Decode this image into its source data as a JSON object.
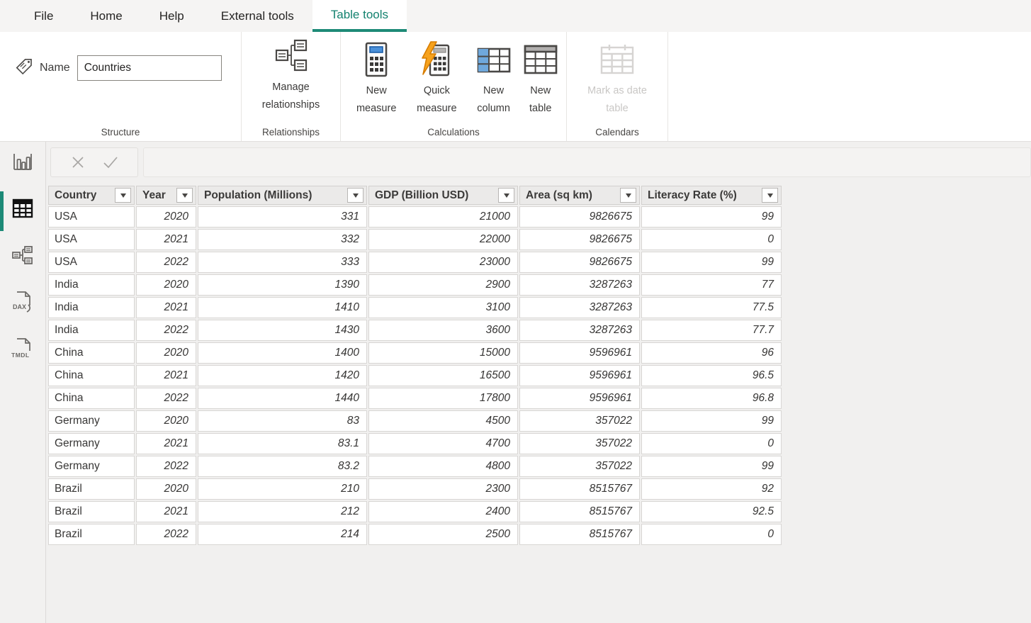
{
  "menu": {
    "items": [
      "File",
      "Home",
      "Help",
      "External tools"
    ],
    "active_tab": "Table tools"
  },
  "ribbon": {
    "structure": {
      "name_label": "Name",
      "name_value": "Countries",
      "group_label": "Structure"
    },
    "relationships": {
      "button_label": "Manage relationships",
      "group_label": "Relationships"
    },
    "calculations": {
      "buttons": [
        "New measure",
        "Quick measure",
        "New column",
        "New table"
      ],
      "group_label": "Calculations"
    },
    "calendars": {
      "button_label": "Mark as date table",
      "disabled": true,
      "group_label": "Calendars"
    }
  },
  "sidebar": {
    "items": [
      "report-view",
      "table-view",
      "model-view",
      "dax-query-view",
      "tmdl-view"
    ],
    "active_item": "table-view",
    "dax_label": "DAX",
    "tmdl_label": "TMDL"
  },
  "formula_bar": {
    "value": "",
    "placeholder": ""
  },
  "table": {
    "columns": [
      "Country",
      "Year",
      "Population (Millions)",
      "GDP (Billion USD)",
      "Area (sq km)",
      "Literacy Rate (%)"
    ],
    "rows": [
      [
        "USA",
        "2020",
        "331",
        "21000",
        "9826675",
        "99"
      ],
      [
        "USA",
        "2021",
        "332",
        "22000",
        "9826675",
        "0"
      ],
      [
        "USA",
        "2022",
        "333",
        "23000",
        "9826675",
        "99"
      ],
      [
        "India",
        "2020",
        "1390",
        "2900",
        "3287263",
        "77"
      ],
      [
        "India",
        "2021",
        "1410",
        "3100",
        "3287263",
        "77.5"
      ],
      [
        "India",
        "2022",
        "1430",
        "3600",
        "3287263",
        "77.7"
      ],
      [
        "China",
        "2020",
        "1400",
        "15000",
        "9596961",
        "96"
      ],
      [
        "China",
        "2021",
        "1420",
        "16500",
        "9596961",
        "96.5"
      ],
      [
        "China",
        "2022",
        "1440",
        "17800",
        "9596961",
        "96.8"
      ],
      [
        "Germany",
        "2020",
        "83",
        "4500",
        "357022",
        "99"
      ],
      [
        "Germany",
        "2021",
        "83.1",
        "4700",
        "357022",
        "0"
      ],
      [
        "Germany",
        "2022",
        "83.2",
        "4800",
        "357022",
        "99"
      ],
      [
        "Brazil",
        "2020",
        "210",
        "2300",
        "8515767",
        "92"
      ],
      [
        "Brazil",
        "2021",
        "212",
        "2400",
        "8515767",
        "92.5"
      ],
      [
        "Brazil",
        "2022",
        "214",
        "2500",
        "8515767",
        "0"
      ]
    ]
  },
  "colors": {
    "accent_teal": "#1d8a77",
    "ribbon_bg": "#ffffff",
    "workspace_bg": "#f1f0ef",
    "header_cell_bg": "#ebeae9",
    "icon_blue": "#4a90d9",
    "bolt_orange": "#f2960f",
    "disabled_text": "#c9c7c5"
  }
}
